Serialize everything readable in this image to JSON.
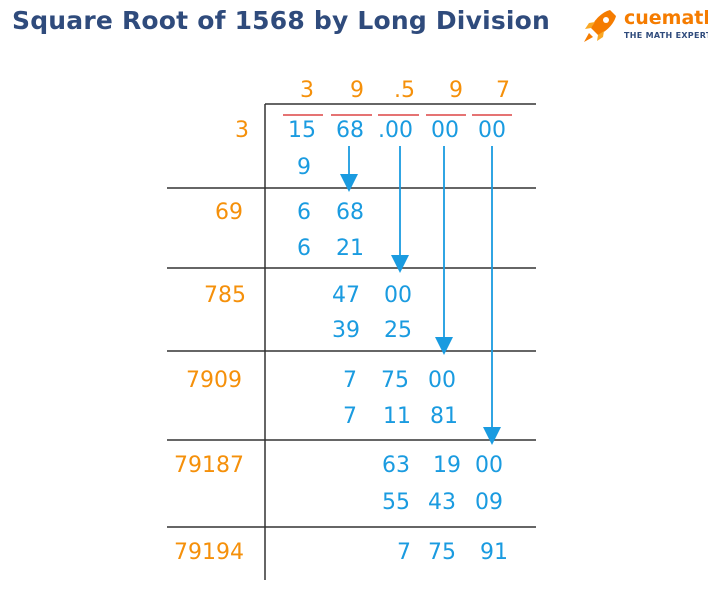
{
  "title": "Square Root of 1568 by Long Division",
  "brand": {
    "name": "cuemath",
    "tagline": "THE MATH EXPERT"
  },
  "quotient": [
    "3",
    "9",
    ".5",
    "9",
    "7"
  ],
  "dividend": [
    "15",
    "68",
    ".00",
    "00",
    "00"
  ],
  "divisors": [
    "3",
    "69",
    "785",
    "7909",
    "79187",
    "79194"
  ],
  "steps": [
    {
      "subtrahend": [
        "9"
      ]
    },
    {
      "remainder": [
        "6",
        "68"
      ],
      "subtrahend": [
        "6",
        "21"
      ]
    },
    {
      "remainder": [
        "47",
        "00"
      ],
      "subtrahend": [
        "39",
        "25"
      ]
    },
    {
      "remainder": [
        "7",
        "75",
        "00"
      ],
      "subtrahend": [
        "7",
        "11",
        "81"
      ]
    },
    {
      "remainder": [
        "63",
        "19",
        "00"
      ],
      "subtrahend": [
        "55",
        "43",
        "09"
      ]
    },
    {
      "remainder": [
        "7",
        "75",
        "91"
      ]
    }
  ],
  "colors": {
    "title": "#2f4b7c",
    "divisor": "#f5900a",
    "digits": "#1a9be0",
    "overline": "#e57373",
    "lines": "#333333",
    "brand": "#f57c00"
  }
}
